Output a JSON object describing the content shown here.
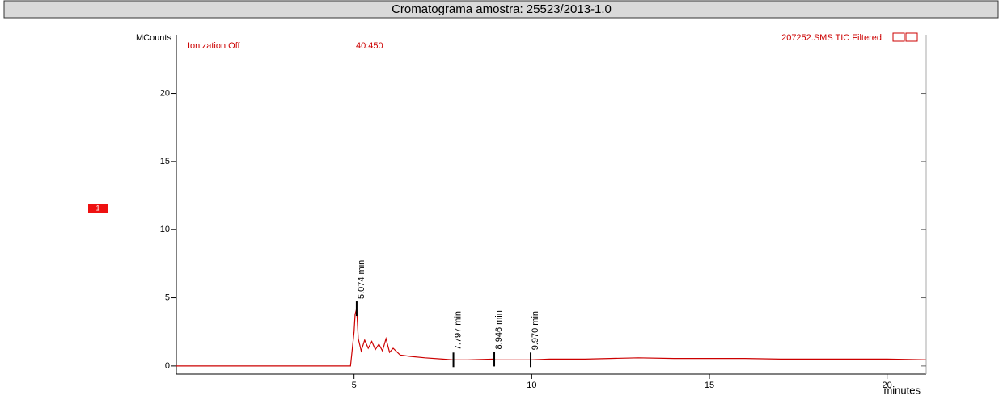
{
  "chart_data": {
    "type": "line",
    "title": "Cromatograma amostra: 25523/2013-1.0",
    "x_label": "minutes",
    "y_label": "MCounts",
    "annotations": [
      "Ionization Off",
      "40:450",
      "207252.SMS TIC Filtered",
      "1"
    ],
    "xlim": [
      0,
      21.1
    ],
    "ylim": [
      -0.6,
      24.3
    ],
    "xticks": [
      5,
      10,
      15,
      20
    ],
    "yticks": [
      0,
      5,
      10,
      15,
      20
    ],
    "series": [
      {
        "name": "207252.SMS TIC Filtered",
        "color": "#cc0000",
        "x": [
          0,
          4.9,
          5.0,
          5.03,
          5.074,
          5.12,
          5.2,
          5.3,
          5.4,
          5.5,
          5.6,
          5.7,
          5.8,
          5.9,
          6.0,
          6.1,
          6.3,
          6.6,
          7.0,
          7.5,
          7.797,
          8.2,
          8.946,
          8.97,
          9.5,
          9.97,
          10.5,
          11.5,
          12.2,
          13,
          14,
          15,
          16,
          17,
          18,
          19,
          20,
          21.1
        ],
        "values": [
          0,
          0,
          2.5,
          3.8,
          4.2,
          2.0,
          1.1,
          1.9,
          1.3,
          1.8,
          1.2,
          1.6,
          1.1,
          2.0,
          1.0,
          1.3,
          0.8,
          0.7,
          0.6,
          0.5,
          0.45,
          0.45,
          0.5,
          0.45,
          0.45,
          0.45,
          0.5,
          0.5,
          0.55,
          0.6,
          0.55,
          0.55,
          0.55,
          0.5,
          0.5,
          0.5,
          0.5,
          0.45
        ]
      }
    ],
    "peaks": [
      {
        "label": "5.074 min",
        "x": 5.074,
        "y": 4.2
      },
      {
        "label": "7.797 min",
        "x": 7.797,
        "y": 0.45
      },
      {
        "label": "8.946 min",
        "x": 8.946,
        "y": 0.5
      },
      {
        "label": "9.970 min",
        "x": 9.97,
        "y": 0.45
      }
    ]
  }
}
